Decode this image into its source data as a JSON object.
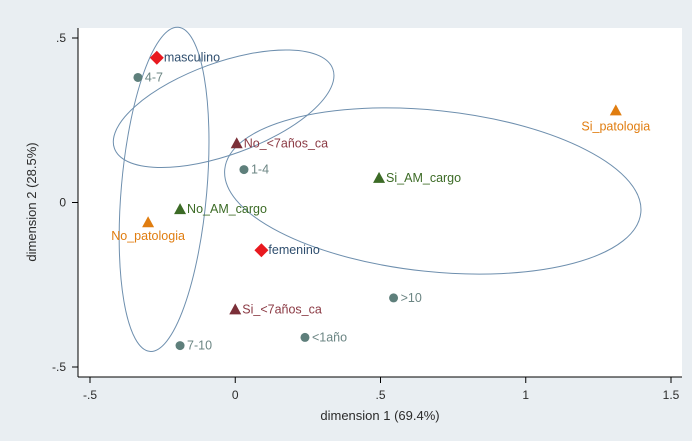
{
  "chart_data": {
    "type": "scatter",
    "title": "",
    "xlabel": "dimension 1 (69.4%)",
    "ylabel": "dimension 2 (28.5%)",
    "xlim": [
      -0.5,
      1.5
    ],
    "ylim": [
      -0.5,
      0.5
    ],
    "x_ticks": [
      -0.5,
      0,
      0.5,
      1,
      1.5
    ],
    "x_tick_labels": [
      "-.5",
      "0",
      ".5",
      "1",
      "1.5"
    ],
    "y_ticks": [
      -0.5,
      0,
      0.5
    ],
    "y_tick_labels": [
      "-.5",
      "0",
      ".5"
    ],
    "grid": false,
    "legend": "none",
    "series": [
      {
        "marker": "diamond",
        "color": "#e8191f",
        "label_color": "#2f4e6e",
        "points": [
          {
            "label": "masculino",
            "x": -0.27,
            "y": 0.44
          },
          {
            "label": "femenino",
            "x": 0.09,
            "y": -0.145
          }
        ]
      },
      {
        "marker": "circle",
        "color": "#5e7f7b",
        "label_color": "#6b8583",
        "points": [
          {
            "label": "4-7",
            "x": -0.335,
            "y": 0.38
          },
          {
            "label": "1-4",
            "x": 0.03,
            "y": 0.1
          },
          {
            "label": ">10",
            "x": 0.545,
            "y": -0.29
          },
          {
            "label": "<1año",
            "x": 0.24,
            "y": -0.41
          },
          {
            "label": "7-10",
            "x": -0.19,
            "y": -0.435
          }
        ]
      },
      {
        "marker": "triangle",
        "color": "#7b2f38",
        "label_color": "#8b3a44",
        "points": [
          {
            "label": "No_<7años_ca",
            "x": 0.005,
            "y": 0.18
          },
          {
            "label": "Si_<7años_ca",
            "x": 0.0,
            "y": -0.325
          }
        ]
      },
      {
        "marker": "triangle",
        "color": "#3c6b26",
        "label_color": "#3c6b26",
        "points": [
          {
            "label": "Si_AM_cargo",
            "x": 0.495,
            "y": 0.075
          },
          {
            "label": "No_AM_cargo",
            "x": -0.19,
            "y": -0.02
          }
        ]
      },
      {
        "marker": "triangle",
        "color": "#e07d10",
        "label_color": "#e07d10",
        "points": [
          {
            "label": "Si_patologia",
            "x": 1.31,
            "y": 0.28
          },
          {
            "label": "No_patologia",
            "x": -0.3,
            "y": -0.06
          }
        ]
      }
    ],
    "ellipses": [
      {
        "cx": -0.04,
        "cy": 0.285,
        "rx": 0.4,
        "ry": 0.14,
        "angle_deg": 20
      },
      {
        "cx": 0.68,
        "cy": 0.035,
        "rx": 0.72,
        "ry": 0.245,
        "angle_deg": -6
      },
      {
        "cx": -0.245,
        "cy": 0.04,
        "rx": 0.56,
        "ry": 0.13,
        "angle_deg": 85
      }
    ],
    "ellipse_color": "#6e8fae"
  }
}
